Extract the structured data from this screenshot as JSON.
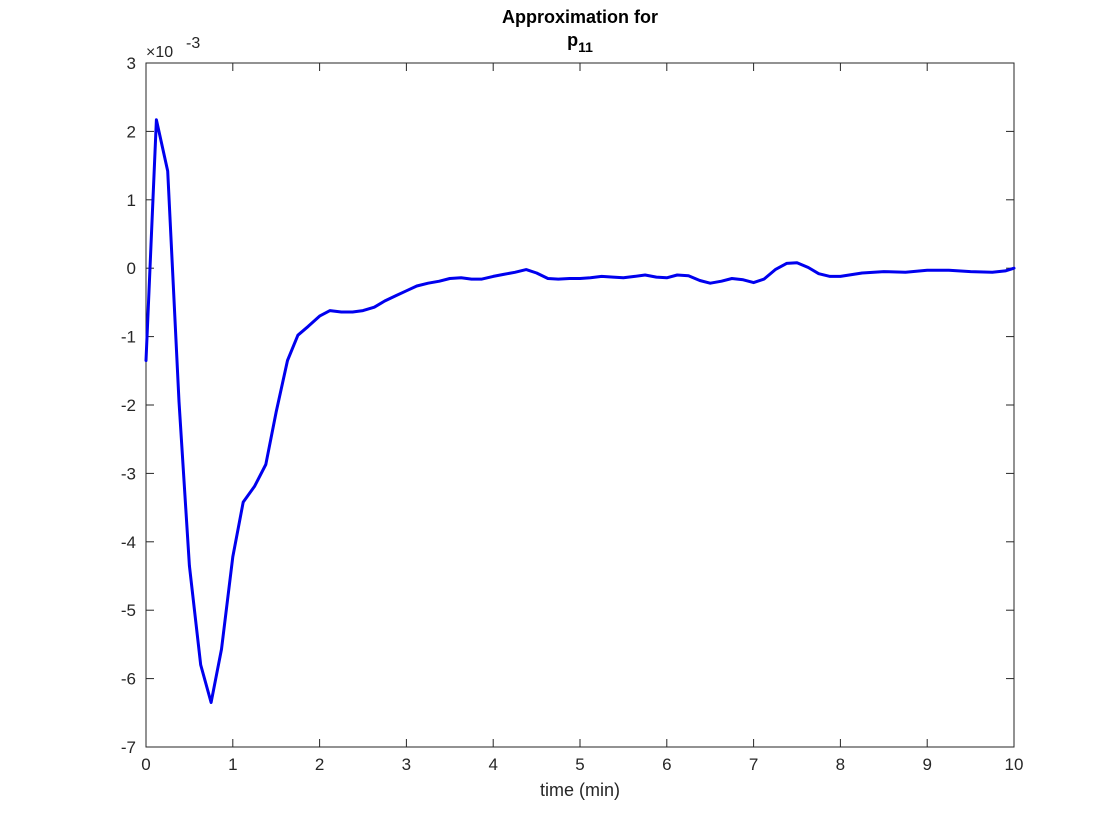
{
  "chart_data": {
    "type": "line",
    "title_line1": "Approximation for",
    "title_line2_base": "p",
    "title_line2_sub": "11",
    "xlabel": "time (min)",
    "ylabel": "",
    "y_exponent_base": "×10",
    "y_exponent_power": "-3",
    "xlim": [
      0,
      10
    ],
    "ylim": [
      -7,
      3
    ],
    "xticks": [
      0,
      1,
      2,
      3,
      4,
      5,
      6,
      7,
      8,
      9,
      10
    ],
    "xtick_labels": [
      "0",
      "1",
      "2",
      "3",
      "4",
      "5",
      "6",
      "7",
      "8",
      "9",
      "10"
    ],
    "yticks": [
      -7,
      -6,
      -5,
      -4,
      -3,
      -2,
      -1,
      0,
      1,
      2,
      3
    ],
    "ytick_labels": [
      "-7",
      "-6",
      "-5",
      "-4",
      "-3",
      "-2",
      "-1",
      "0",
      "1",
      "2",
      "3"
    ],
    "grid": false,
    "box": true,
    "line_color": "#0000ee",
    "axis_color": "#262626",
    "series": [
      {
        "x": [
          0,
          0.12,
          0.25,
          0.38,
          0.5,
          0.63,
          0.75,
          0.87,
          1.0,
          1.12,
          1.25,
          1.38,
          1.5,
          1.63,
          1.75,
          1.87,
          2.0,
          2.12,
          2.25,
          2.38,
          2.5,
          2.63,
          2.75,
          2.88,
          3.0,
          3.12,
          3.25,
          3.38,
          3.5,
          3.63,
          3.75,
          3.87,
          4.0,
          4.12,
          4.25,
          4.38,
          4.5,
          4.63,
          4.75,
          4.88,
          5.0,
          5.12,
          5.25,
          5.38,
          5.5,
          5.63,
          5.75,
          5.88,
          6.0,
          6.12,
          6.25,
          6.38,
          6.5,
          6.63,
          6.75,
          6.88,
          7.0,
          7.12,
          7.25,
          7.38,
          7.5,
          7.63,
          7.75,
          7.88,
          8.0,
          8.25,
          8.5,
          8.75,
          9.0,
          9.25,
          9.5,
          9.75,
          9.9,
          10.0
        ],
        "y": [
          -1.35,
          2.17,
          1.42,
          -1.95,
          -4.35,
          -5.8,
          -6.35,
          -5.57,
          -4.22,
          -3.42,
          -3.19,
          -2.87,
          -2.1,
          -1.35,
          -0.98,
          -0.85,
          -0.7,
          -0.62,
          -0.64,
          -0.64,
          -0.62,
          -0.57,
          -0.48,
          -0.4,
          -0.33,
          -0.26,
          -0.22,
          -0.19,
          -0.15,
          -0.14,
          -0.16,
          -0.16,
          -0.12,
          -0.09,
          -0.06,
          -0.02,
          -0.07,
          -0.15,
          -0.16,
          -0.15,
          -0.15,
          -0.14,
          -0.12,
          -0.13,
          -0.14,
          -0.12,
          -0.1,
          -0.13,
          -0.14,
          -0.1,
          -0.11,
          -0.18,
          -0.22,
          -0.19,
          -0.15,
          -0.17,
          -0.21,
          -0.16,
          -0.02,
          0.07,
          0.08,
          0.01,
          -0.08,
          -0.12,
          -0.12,
          -0.07,
          -0.05,
          -0.06,
          -0.03,
          -0.03,
          -0.05,
          -0.06,
          -0.04,
          0
        ]
      }
    ]
  }
}
